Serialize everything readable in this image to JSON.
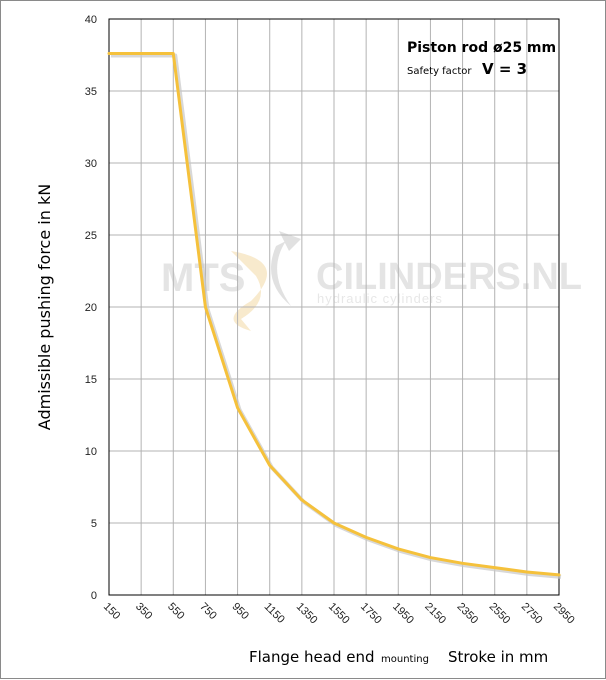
{
  "chart_data": {
    "type": "line",
    "title": "",
    "ylabel": "Admissible  pushing  force in kN",
    "ylim": [
      0,
      40
    ],
    "yticks": [
      0,
      5,
      10,
      15,
      20,
      25,
      30,
      35,
      40
    ],
    "xticks": [
      150,
      350,
      550,
      750,
      950,
      1150,
      1350,
      1550,
      1750,
      1950,
      2150,
      2350,
      2550,
      2750,
      2950
    ],
    "xlim": [
      150,
      2950
    ],
    "x": [
      150,
      350,
      550,
      750,
      950,
      1150,
      1350,
      1550,
      1750,
      1950,
      2150,
      2350,
      2550,
      2750,
      2950
    ],
    "series": [
      {
        "values": [
          37.6,
          37.6,
          37.6,
          20.0,
          13.0,
          9.0,
          6.6,
          5.0,
          4.0,
          3.2,
          2.6,
          2.2,
          1.9,
          1.6,
          1.4
        ]
      }
    ],
    "line_color": "#f5c13b",
    "grid": true,
    "annotation": {
      "line1": "Piston rod ø25 mm",
      "line2_small": "Safety factor",
      "line2_big": "V = 3"
    },
    "xlabel_parts": {
      "part1": "Flange head end",
      "part2": "mounting",
      "part3": "Stroke in mm"
    },
    "watermark": {
      "left": "MTS",
      "right": "CILINDERS.NL",
      "sub": "hydraulic  cylinders"
    }
  }
}
